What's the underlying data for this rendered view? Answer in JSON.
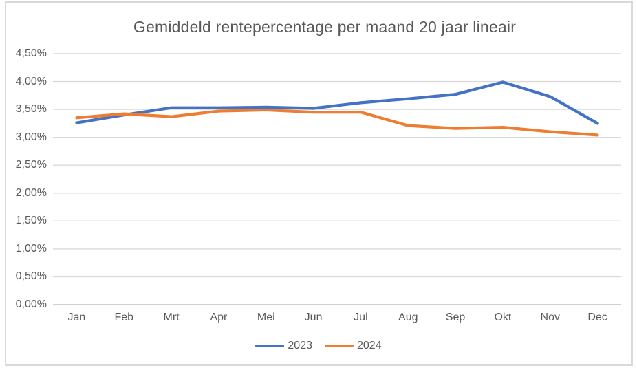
{
  "chart_data": {
    "type": "line",
    "title": "Gemiddeld rentepercentage per maand 20 jaar lineair",
    "categories": [
      "Jan",
      "Feb",
      "Mrt",
      "Apr",
      "Mei",
      "Jun",
      "Jul",
      "Aug",
      "Sep",
      "Okt",
      "Nov",
      "Dec"
    ],
    "series": [
      {
        "name": "2023",
        "color": "#4472C4",
        "values": [
          3.26,
          3.4,
          3.53,
          3.53,
          3.54,
          3.52,
          3.62,
          3.69,
          3.77,
          3.99,
          3.73,
          3.25
        ]
      },
      {
        "name": "2024",
        "color": "#ED7D31",
        "values": [
          3.35,
          3.42,
          3.37,
          3.47,
          3.49,
          3.45,
          3.45,
          3.21,
          3.16,
          3.18,
          3.1,
          3.04
        ]
      }
    ],
    "xlabel": "",
    "ylabel": "",
    "ylim": [
      0,
      4.5
    ],
    "ytick_step": 0.5,
    "ytick_labels": [
      "0,00%",
      "0,50%",
      "1,00%",
      "1,50%",
      "2,00%",
      "2,50%",
      "3,00%",
      "3,50%",
      "4,00%",
      "4,50%"
    ],
    "grid": true,
    "legend_position": "bottom",
    "colors": {
      "title_text": "#595959",
      "axis_text": "#595959",
      "gridline": "#D9D9D9",
      "axis_line": "#BFBFBF",
      "frame_border": "#D9D9D9",
      "background": "#FFFFFF"
    }
  }
}
